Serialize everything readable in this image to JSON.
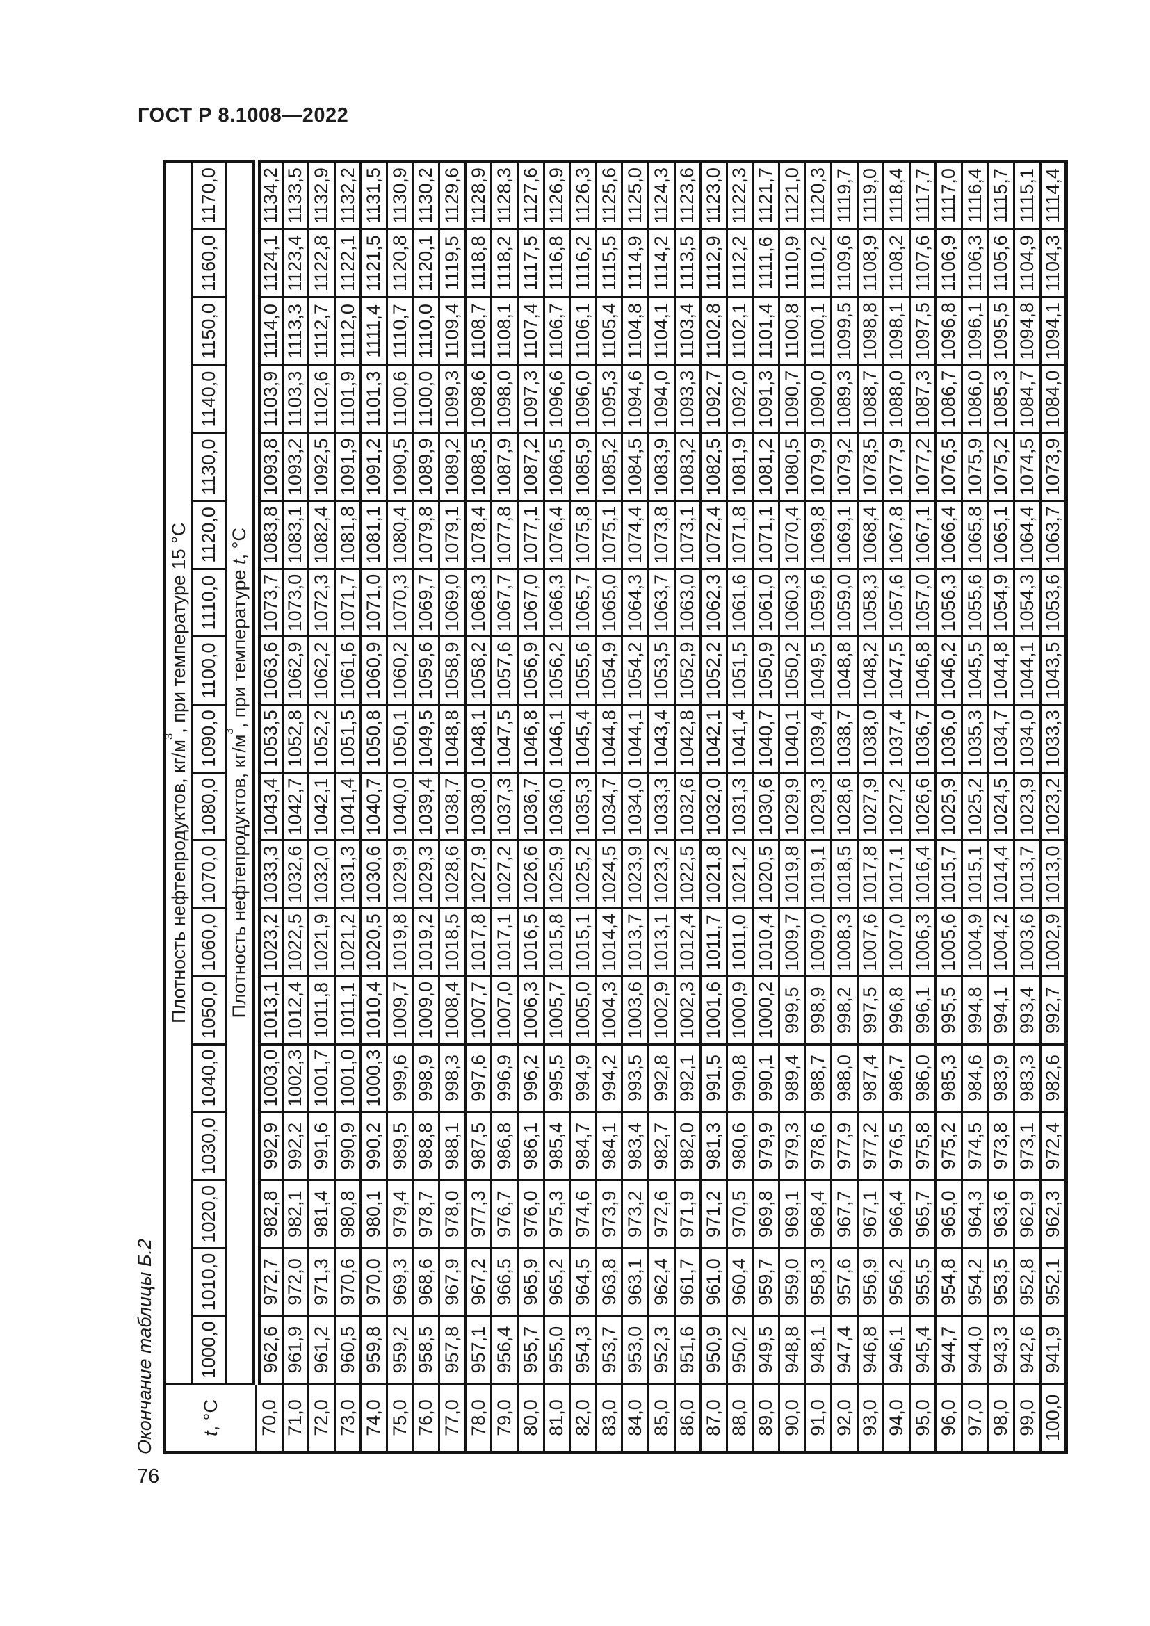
{
  "page": {
    "standard_header": "ГОСТ Р 8.1008—2022",
    "table_caption_vertical": "Окончание таблицы Б.2",
    "page_number": "76"
  },
  "table": {
    "corner": {
      "symbol": "t",
      "rest": ", °С"
    },
    "header_15": {
      "text": "Плотность нефтепродуктов, кг/м",
      "sup": "3",
      "rest": ", при температуре 15 °С"
    },
    "header_t": {
      "text": "Плотность нефтепродуктов, кг/м",
      "sup": "3",
      "rest": ", при температуре ",
      "symbol": "t",
      "rest2": ", °С"
    },
    "density_headers": [
      "1000,0",
      "1010,0",
      "1020,0",
      "1030,0",
      "1040,0",
      "1050,0",
      "1060,0",
      "1070,0",
      "1080,0",
      "1090,0",
      "1100,0",
      "1110,0",
      "1120,0",
      "1130,0",
      "1140,0",
      "1150,0",
      "1160,0",
      "1170,0"
    ],
    "rows": [
      {
        "t": "70,0",
        "values": [
          "962,6",
          "972,7",
          "982,8",
          "992,9",
          "1003,0",
          "1013,1",
          "1023,2",
          "1033,3",
          "1043,4",
          "1053,5",
          "1063,6",
          "1073,7",
          "1083,8",
          "1093,8",
          "1103,9",
          "1114,0",
          "1124,1",
          "1134,2"
        ]
      },
      {
        "t": "71,0",
        "values": [
          "961,9",
          "972,0",
          "982,1",
          "992,2",
          "1002,3",
          "1012,4",
          "1022,5",
          "1032,6",
          "1042,7",
          "1052,8",
          "1062,9",
          "1073,0",
          "1083,1",
          "1093,2",
          "1103,3",
          "1113,3",
          "1123,4",
          "1133,5"
        ]
      },
      {
        "t": "72,0",
        "values": [
          "961,2",
          "971,3",
          "981,4",
          "991,6",
          "1001,7",
          "1011,8",
          "1021,9",
          "1032,0",
          "1042,1",
          "1052,2",
          "1062,2",
          "1072,3",
          "1082,4",
          "1092,5",
          "1102,6",
          "1112,7",
          "1122,8",
          "1132,9"
        ]
      },
      {
        "t": "73,0",
        "values": [
          "960,5",
          "970,6",
          "980,8",
          "990,9",
          "1001,0",
          "1011,1",
          "1021,2",
          "1031,3",
          "1041,4",
          "1051,5",
          "1061,6",
          "1071,7",
          "1081,8",
          "1091,9",
          "1101,9",
          "1112,0",
          "1122,1",
          "1132,2"
        ]
      },
      {
        "t": "74,0",
        "values": [
          "959,8",
          "970,0",
          "980,1",
          "990,2",
          "1000,3",
          "1010,4",
          "1020,5",
          "1030,6",
          "1040,7",
          "1050,8",
          "1060,9",
          "1071,0",
          "1081,1",
          "1091,2",
          "1101,3",
          "1111,4",
          "1121,5",
          "1131,5"
        ]
      },
      {
        "t": "75,0",
        "values": [
          "959,2",
          "969,3",
          "979,4",
          "989,5",
          "999,6",
          "1009,7",
          "1019,8",
          "1029,9",
          "1040,0",
          "1050,1",
          "1060,2",
          "1070,3",
          "1080,4",
          "1090,5",
          "1100,6",
          "1110,7",
          "1120,8",
          "1130,9"
        ]
      },
      {
        "t": "76,0",
        "values": [
          "958,5",
          "968,6",
          "978,7",
          "988,8",
          "998,9",
          "1009,0",
          "1019,2",
          "1029,3",
          "1039,4",
          "1049,5",
          "1059,6",
          "1069,7",
          "1079,8",
          "1089,9",
          "1100,0",
          "1110,0",
          "1120,1",
          "1130,2"
        ]
      },
      {
        "t": "77,0",
        "values": [
          "957,8",
          "967,9",
          "978,0",
          "988,1",
          "998,3",
          "1008,4",
          "1018,5",
          "1028,6",
          "1038,7",
          "1048,8",
          "1058,9",
          "1069,0",
          "1079,1",
          "1089,2",
          "1099,3",
          "1109,4",
          "1119,5",
          "1129,6"
        ]
      },
      {
        "t": "78,0",
        "values": [
          "957,1",
          "967,2",
          "977,3",
          "987,5",
          "997,6",
          "1007,7",
          "1017,8",
          "1027,9",
          "1038,0",
          "1048,1",
          "1058,2",
          "1068,3",
          "1078,4",
          "1088,5",
          "1098,6",
          "1108,7",
          "1118,8",
          "1128,9"
        ]
      },
      {
        "t": "79,0",
        "values": [
          "956,4",
          "966,5",
          "976,7",
          "986,8",
          "996,9",
          "1007,0",
          "1017,1",
          "1027,2",
          "1037,3",
          "1047,5",
          "1057,6",
          "1067,7",
          "1077,8",
          "1087,9",
          "1098,0",
          "1108,1",
          "1118,2",
          "1128,3"
        ]
      },
      {
        "t": "80,0",
        "values": [
          "955,7",
          "965,9",
          "976,0",
          "986,1",
          "996,2",
          "1006,3",
          "1016,5",
          "1026,6",
          "1036,7",
          "1046,8",
          "1056,9",
          "1067,0",
          "1077,1",
          "1087,2",
          "1097,3",
          "1107,4",
          "1117,5",
          "1127,6"
        ]
      },
      {
        "t": "81,0",
        "values": [
          "955,0",
          "965,2",
          "975,3",
          "985,4",
          "995,5",
          "1005,7",
          "1015,8",
          "1025,9",
          "1036,0",
          "1046,1",
          "1056,2",
          "1066,3",
          "1076,4",
          "1086,5",
          "1096,6",
          "1106,7",
          "1116,8",
          "1126,9"
        ]
      },
      {
        "t": "82,0",
        "values": [
          "954,3",
          "964,5",
          "974,6",
          "984,7",
          "994,9",
          "1005,0",
          "1015,1",
          "1025,2",
          "1035,3",
          "1045,4",
          "1055,6",
          "1065,7",
          "1075,8",
          "1085,9",
          "1096,0",
          "1106,1",
          "1116,2",
          "1126,3"
        ]
      },
      {
        "t": "83,0",
        "values": [
          "953,7",
          "963,8",
          "973,9",
          "984,1",
          "994,2",
          "1004,3",
          "1014,4",
          "1024,5",
          "1034,7",
          "1044,8",
          "1054,9",
          "1065,0",
          "1075,1",
          "1085,2",
          "1095,3",
          "1105,4",
          "1115,5",
          "1125,6"
        ]
      },
      {
        "t": "84,0",
        "values": [
          "953,0",
          "963,1",
          "973,2",
          "983,4",
          "993,5",
          "1003,6",
          "1013,7",
          "1023,9",
          "1034,0",
          "1044,1",
          "1054,2",
          "1064,3",
          "1074,4",
          "1084,5",
          "1094,6",
          "1104,8",
          "1114,9",
          "1125,0"
        ]
      },
      {
        "t": "85,0",
        "values": [
          "952,3",
          "962,4",
          "972,6",
          "982,7",
          "992,8",
          "1002,9",
          "1013,1",
          "1023,2",
          "1033,3",
          "1043,4",
          "1053,5",
          "1063,7",
          "1073,8",
          "1083,9",
          "1094,0",
          "1104,1",
          "1114,2",
          "1124,3"
        ]
      },
      {
        "t": "86,0",
        "values": [
          "951,6",
          "961,7",
          "971,9",
          "982,0",
          "992,1",
          "1002,3",
          "1012,4",
          "1022,5",
          "1032,6",
          "1042,8",
          "1052,9",
          "1063,0",
          "1073,1",
          "1083,2",
          "1093,3",
          "1103,4",
          "1113,5",
          "1123,6"
        ]
      },
      {
        "t": "87,0",
        "values": [
          "950,9",
          "961,0",
          "971,2",
          "981,3",
          "991,5",
          "1001,6",
          "1011,7",
          "1021,8",
          "1032,0",
          "1042,1",
          "1052,2",
          "1062,3",
          "1072,4",
          "1082,5",
          "1092,7",
          "1102,8",
          "1112,9",
          "1123,0"
        ]
      },
      {
        "t": "88,0",
        "values": [
          "950,2",
          "960,4",
          "970,5",
          "980,6",
          "990,8",
          "1000,9",
          "1011,0",
          "1021,2",
          "1031,3",
          "1041,4",
          "1051,5",
          "1061,6",
          "1071,8",
          "1081,9",
          "1092,0",
          "1102,1",
          "1112,2",
          "1122,3"
        ]
      },
      {
        "t": "89,0",
        "values": [
          "949,5",
          "959,7",
          "969,8",
          "979,9",
          "990,1",
          "1000,2",
          "1010,4",
          "1020,5",
          "1030,6",
          "1040,7",
          "1050,9",
          "1061,0",
          "1071,1",
          "1081,2",
          "1091,3",
          "1101,4",
          "1111,6",
          "1121,7"
        ]
      },
      {
        "t": "90,0",
        "values": [
          "948,8",
          "959,0",
          "969,1",
          "979,3",
          "989,4",
          "999,5",
          "1009,7",
          "1019,8",
          "1029,9",
          "1040,1",
          "1050,2",
          "1060,3",
          "1070,4",
          "1080,5",
          "1090,7",
          "1100,8",
          "1110,9",
          "1121,0"
        ]
      },
      {
        "t": "91,0",
        "values": [
          "948,1",
          "958,3",
          "968,4",
          "978,6",
          "988,7",
          "998,9",
          "1009,0",
          "1019,1",
          "1029,3",
          "1039,4",
          "1049,5",
          "1059,6",
          "1069,8",
          "1079,9",
          "1090,0",
          "1100,1",
          "1110,2",
          "1120,3"
        ]
      },
      {
        "t": "92,0",
        "values": [
          "947,4",
          "957,6",
          "967,7",
          "977,9",
          "988,0",
          "998,2",
          "1008,3",
          "1018,5",
          "1028,6",
          "1038,7",
          "1048,8",
          "1059,0",
          "1069,1",
          "1079,2",
          "1089,3",
          "1099,5",
          "1109,6",
          "1119,7"
        ]
      },
      {
        "t": "93,0",
        "values": [
          "946,8",
          "956,9",
          "967,1",
          "977,2",
          "987,4",
          "997,5",
          "1007,6",
          "1017,8",
          "1027,9",
          "1038,0",
          "1048,2",
          "1058,3",
          "1068,4",
          "1078,5",
          "1088,7",
          "1098,8",
          "1108,9",
          "1119,0"
        ]
      },
      {
        "t": "94,0",
        "values": [
          "946,1",
          "956,2",
          "966,4",
          "976,5",
          "986,7",
          "996,8",
          "1007,0",
          "1017,1",
          "1027,2",
          "1037,4",
          "1047,5",
          "1057,6",
          "1067,8",
          "1077,9",
          "1088,0",
          "1098,1",
          "1108,2",
          "1118,4"
        ]
      },
      {
        "t": "95,0",
        "values": [
          "945,4",
          "955,5",
          "965,7",
          "975,8",
          "986,0",
          "996,1",
          "1006,3",
          "1016,4",
          "1026,6",
          "1036,7",
          "1046,8",
          "1057,0",
          "1067,1",
          "1077,2",
          "1087,3",
          "1097,5",
          "1107,6",
          "1117,7"
        ]
      },
      {
        "t": "96,0",
        "values": [
          "944,7",
          "954,8",
          "965,0",
          "975,2",
          "985,3",
          "995,5",
          "1005,6",
          "1015,7",
          "1025,9",
          "1036,0",
          "1046,2",
          "1056,3",
          "1066,4",
          "1076,5",
          "1086,7",
          "1096,8",
          "1106,9",
          "1117,0"
        ]
      },
      {
        "t": "97,0",
        "values": [
          "944,0",
          "954,2",
          "964,3",
          "974,5",
          "984,6",
          "994,8",
          "1004,9",
          "1015,1",
          "1025,2",
          "1035,3",
          "1045,5",
          "1055,6",
          "1065,8",
          "1075,9",
          "1086,0",
          "1096,1",
          "1106,3",
          "1116,4"
        ]
      },
      {
        "t": "98,0",
        "values": [
          "943,3",
          "953,5",
          "963,6",
          "973,8",
          "983,9",
          "994,1",
          "1004,2",
          "1014,4",
          "1024,5",
          "1034,7",
          "1044,8",
          "1054,9",
          "1065,1",
          "1075,2",
          "1085,3",
          "1095,5",
          "1105,6",
          "1115,7"
        ]
      },
      {
        "t": "99,0",
        "values": [
          "942,6",
          "952,8",
          "962,9",
          "973,1",
          "983,3",
          "993,4",
          "1003,6",
          "1013,7",
          "1023,9",
          "1034,0",
          "1044,1",
          "1054,3",
          "1064,4",
          "1074,5",
          "1084,7",
          "1094,8",
          "1104,9",
          "1115,1"
        ]
      },
      {
        "t": "100,0",
        "values": [
          "941,9",
          "952,1",
          "962,3",
          "972,4",
          "982,6",
          "992,7",
          "1002,9",
          "1013,0",
          "1023,2",
          "1033,3",
          "1043,5",
          "1053,6",
          "1063,7",
          "1073,9",
          "1084,0",
          "1094,1",
          "1104,3",
          "1114,4"
        ]
      }
    ]
  }
}
